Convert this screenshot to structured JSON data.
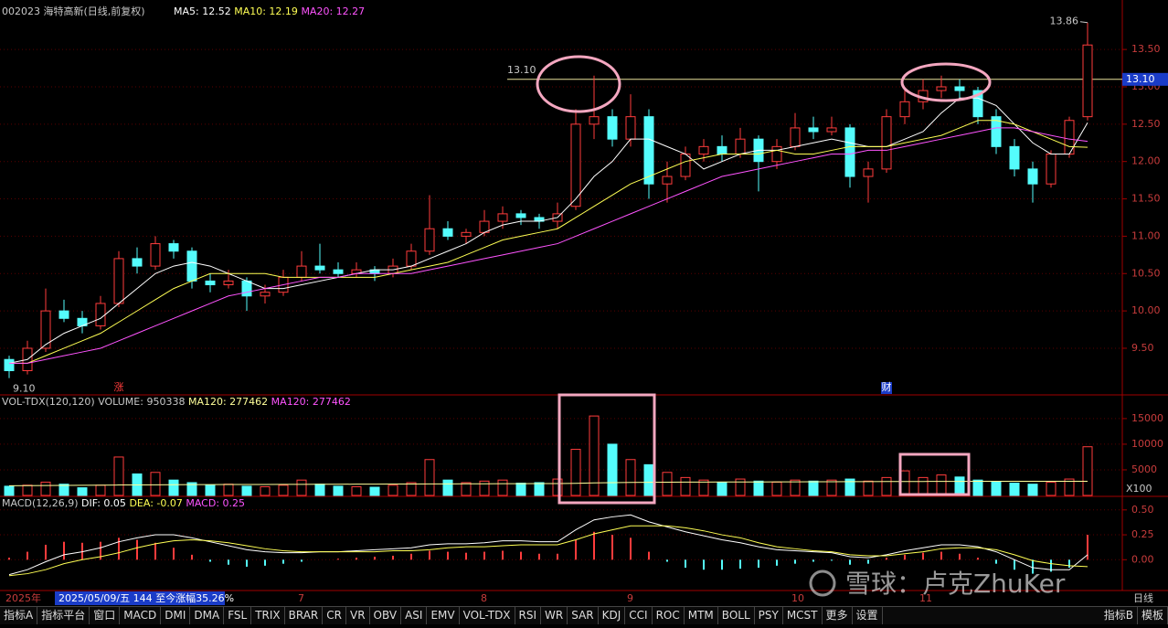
{
  "header": {
    "symbol": "002023 海特高新(日线,前复权)"
  },
  "chart_data": [
    {
      "type": "candlestick",
      "categories": [
        "2025年",
        null,
        null,
        null,
        null,
        null,
        null,
        null,
        null,
        null,
        null,
        null,
        null,
        null,
        null,
        null,
        "7",
        null,
        null,
        null,
        null,
        null,
        null,
        null,
        null,
        null,
        "8",
        null,
        null,
        null,
        null,
        null,
        null,
        null,
        "9",
        null,
        null,
        null,
        null,
        null,
        null,
        null,
        null,
        "10",
        null,
        null,
        null,
        null,
        null,
        null,
        "11",
        null,
        null,
        null,
        null,
        null,
        null,
        null,
        null,
        null
      ],
      "open": [
        9.35,
        9.2,
        9.5,
        10.0,
        9.9,
        9.8,
        10.1,
        10.7,
        10.6,
        10.9,
        10.8,
        10.4,
        10.35,
        10.4,
        10.2,
        10.25,
        10.45,
        10.6,
        10.55,
        10.5,
        10.55,
        10.5,
        10.6,
        10.8,
        11.1,
        11.0,
        11.05,
        11.2,
        11.3,
        11.25,
        11.2,
        11.4,
        12.5,
        12.6,
        12.3,
        12.6,
        11.7,
        11.8,
        12.1,
        12.2,
        12.1,
        12.3,
        12.0,
        12.2,
        12.45,
        12.4,
        12.45,
        11.8,
        11.9,
        12.6,
        12.8,
        12.95,
        13.0,
        12.95,
        12.6,
        12.2,
        11.9,
        11.7,
        12.1,
        12.6
      ],
      "high": [
        9.4,
        9.6,
        10.3,
        10.15,
        10.0,
        10.2,
        10.8,
        10.85,
        11.0,
        10.95,
        10.85,
        10.5,
        10.55,
        10.45,
        10.35,
        10.55,
        10.8,
        10.9,
        10.65,
        10.65,
        10.6,
        10.7,
        10.9,
        11.55,
        11.2,
        11.1,
        11.35,
        11.4,
        11.35,
        11.3,
        11.45,
        12.7,
        13.15,
        12.7,
        12.9,
        12.7,
        12.0,
        12.2,
        12.3,
        12.35,
        12.45,
        12.35,
        12.3,
        12.65,
        12.6,
        12.6,
        12.5,
        12.0,
        12.7,
        13.0,
        13.1,
        13.15,
        13.1,
        13.0,
        12.7,
        12.3,
        12.0,
        12.15,
        12.6,
        13.86
      ],
      "low": [
        9.1,
        9.15,
        9.45,
        9.85,
        9.7,
        9.75,
        10.05,
        10.5,
        10.55,
        10.7,
        10.3,
        10.25,
        10.3,
        10.0,
        10.1,
        10.2,
        10.4,
        10.5,
        10.45,
        10.45,
        10.4,
        10.45,
        10.55,
        10.75,
        10.95,
        10.9,
        11.0,
        11.1,
        11.15,
        11.1,
        11.1,
        11.35,
        12.3,
        12.2,
        12.2,
        11.5,
        11.45,
        11.75,
        12.0,
        12.0,
        12.05,
        11.6,
        11.9,
        12.15,
        12.3,
        12.35,
        11.65,
        11.45,
        11.85,
        12.5,
        12.7,
        12.85,
        12.85,
        12.5,
        12.1,
        11.8,
        11.45,
        11.65,
        12.05,
        12.55
      ],
      "close": [
        9.2,
        9.5,
        10.0,
        9.9,
        9.8,
        10.1,
        10.7,
        10.6,
        10.9,
        10.8,
        10.4,
        10.35,
        10.4,
        10.2,
        10.25,
        10.45,
        10.6,
        10.55,
        10.5,
        10.55,
        10.5,
        10.6,
        10.8,
        11.1,
        11.0,
        11.05,
        11.2,
        11.3,
        11.25,
        11.2,
        11.3,
        12.5,
        12.6,
        12.3,
        12.6,
        11.7,
        11.8,
        12.1,
        12.2,
        12.1,
        12.3,
        12.0,
        12.2,
        12.45,
        12.4,
        12.45,
        11.8,
        11.9,
        12.6,
        12.8,
        12.95,
        13.0,
        12.95,
        12.6,
        12.2,
        11.9,
        11.7,
        12.1,
        12.55,
        13.56
      ],
      "up_color": "#ff3c3c",
      "down_color": "#54fcfc",
      "series": [
        {
          "name": "MA5: 12.52",
          "color": "#ffffff",
          "values": [
            9.3,
            9.35,
            9.55,
            9.7,
            9.8,
            9.9,
            10.1,
            10.3,
            10.5,
            10.6,
            10.65,
            10.6,
            10.5,
            10.4,
            10.3,
            10.3,
            10.35,
            10.4,
            10.45,
            10.5,
            10.55,
            10.55,
            10.6,
            10.7,
            10.8,
            10.9,
            11.05,
            11.15,
            11.2,
            11.2,
            11.25,
            11.5,
            11.8,
            12.0,
            12.3,
            12.3,
            12.2,
            12.1,
            11.9,
            12.0,
            12.1,
            12.15,
            12.15,
            12.2,
            12.25,
            12.3,
            12.25,
            12.2,
            12.2,
            12.3,
            12.4,
            12.65,
            12.85,
            12.85,
            12.75,
            12.5,
            12.25,
            12.1,
            12.1,
            12.52
          ]
        },
        {
          "name": "MA10: 12.19",
          "color": "#ffff54",
          "values": [
            9.3,
            9.3,
            9.4,
            9.5,
            9.6,
            9.7,
            9.85,
            10.0,
            10.15,
            10.3,
            10.4,
            10.5,
            10.5,
            10.5,
            10.5,
            10.45,
            10.45,
            10.45,
            10.45,
            10.45,
            10.45,
            10.5,
            10.55,
            10.6,
            10.65,
            10.75,
            10.85,
            10.95,
            11.0,
            11.05,
            11.1,
            11.25,
            11.4,
            11.55,
            11.7,
            11.8,
            11.9,
            12.0,
            12.05,
            12.1,
            12.1,
            12.1,
            12.15,
            12.1,
            12.1,
            12.15,
            12.2,
            12.2,
            12.2,
            12.25,
            12.3,
            12.35,
            12.45,
            12.55,
            12.55,
            12.5,
            12.4,
            12.3,
            12.2,
            12.19
          ]
        },
        {
          "name": "MA20: 12.27",
          "color": "#ff54ff",
          "values": [
            9.3,
            9.3,
            9.35,
            9.4,
            9.45,
            9.5,
            9.6,
            9.7,
            9.8,
            9.9,
            10.0,
            10.1,
            10.2,
            10.25,
            10.3,
            10.35,
            10.4,
            10.45,
            10.45,
            10.5,
            10.5,
            10.5,
            10.5,
            10.55,
            10.6,
            10.65,
            10.7,
            10.75,
            10.8,
            10.85,
            10.9,
            11.0,
            11.1,
            11.2,
            11.3,
            11.4,
            11.5,
            11.6,
            11.7,
            11.8,
            11.85,
            11.9,
            11.95,
            12.0,
            12.05,
            12.1,
            12.1,
            12.15,
            12.15,
            12.2,
            12.25,
            12.3,
            12.35,
            12.4,
            12.45,
            12.45,
            12.4,
            12.35,
            12.3,
            12.27
          ]
        }
      ],
      "ylim": [
        8.9,
        14.04
      ],
      "yticks": [
        {
          "value": 9.5,
          "label": "9.50"
        },
        {
          "value": 10,
          "label": "10.00"
        },
        {
          "value": 10.5,
          "label": "10.50"
        },
        {
          "value": 11,
          "label": "11.00"
        },
        {
          "value": 11.5,
          "label": "11.50"
        },
        {
          "value": 12,
          "label": "12.00"
        },
        {
          "value": 12.5,
          "label": "12.50"
        },
        {
          "value": 13,
          "label": "13.00"
        },
        {
          "value": 13.5,
          "label": "13.50"
        }
      ],
      "grid": true,
      "hline": {
        "value": 13.1,
        "label": "13.10"
      },
      "high_mark": 13.86,
      "low_mark": {
        "value": 9.1,
        "label": "9.10"
      },
      "events": [
        {
          "category_index": 6,
          "label": "涨"
        },
        {
          "category_index": 48,
          "label": "财"
        }
      ]
    },
    {
      "type": "bar",
      "title": "VOL-TDX(120,120)",
      "series": [
        {
          "name": "VOLUME: 950338",
          "values": [
            1800,
            2000,
            2600,
            2200,
            1500,
            2000,
            7500,
            4200,
            4500,
            3000,
            2500,
            2000,
            2200,
            1800,
            1700,
            2000,
            3000,
            2200,
            1800,
            1700,
            1600,
            2000,
            2500,
            7000,
            3000,
            2500,
            2800,
            3000,
            2400,
            2500,
            3200,
            9000,
            15500,
            10000,
            7000,
            6000,
            4500,
            3500,
            3000,
            2500,
            3200,
            2800,
            2600,
            3000,
            2800,
            3000,
            3200,
            2800,
            3500,
            4800,
            3500,
            4000,
            3600,
            3000,
            2600,
            2400,
            2200,
            2600,
            3200,
            9503
          ]
        },
        {
          "name": "MA120: 277462",
          "color": "#ffff9a",
          "values": [
            1900,
            1920,
            1940,
            1960,
            1980,
            2000,
            2040,
            2060,
            2080,
            2100,
            2110,
            2120,
            2130,
            2140,
            2150,
            2160,
            2170,
            2180,
            2190,
            2200,
            2210,
            2220,
            2230,
            2250,
            2260,
            2270,
            2280,
            2290,
            2300,
            2310,
            2320,
            2370,
            2450,
            2500,
            2540,
            2570,
            2590,
            2600,
            2610,
            2620,
            2630,
            2640,
            2650,
            2660,
            2670,
            2680,
            2690,
            2700,
            2710,
            2720,
            2730,
            2740,
            2750,
            2755,
            2760,
            2765,
            2768,
            2770,
            2772,
            2775
          ]
        }
      ],
      "legend_extra": "MA120: 277462",
      "unit": "X100",
      "ylim": [
        0,
        17300
      ],
      "yticks": [
        5000,
        10000,
        15000
      ],
      "grid": true
    },
    {
      "type": "macd",
      "title": "MACD(12,26,9)",
      "series": [
        {
          "name": "DIF: 0.05",
          "color": "#ffffff",
          "values": [
            -0.15,
            -0.1,
            -0.02,
            0.05,
            0.08,
            0.12,
            0.18,
            0.22,
            0.25,
            0.25,
            0.22,
            0.18,
            0.14,
            0.1,
            0.08,
            0.07,
            0.07,
            0.08,
            0.08,
            0.09,
            0.1,
            0.11,
            0.12,
            0.15,
            0.16,
            0.16,
            0.17,
            0.19,
            0.19,
            0.18,
            0.18,
            0.3,
            0.4,
            0.43,
            0.45,
            0.38,
            0.33,
            0.28,
            0.24,
            0.2,
            0.17,
            0.13,
            0.1,
            0.09,
            0.08,
            0.07,
            0.03,
            0.02,
            0.05,
            0.09,
            0.12,
            0.15,
            0.15,
            0.13,
            0.08,
            0,
            -0.08,
            -0.1,
            -0.1,
            0.05
          ]
        },
        {
          "name": "DEA: -0.07",
          "color": "#ffff54",
          "values": [
            -0.16,
            -0.14,
            -0.1,
            -0.04,
            0,
            0.03,
            0.07,
            0.12,
            0.16,
            0.19,
            0.2,
            0.19,
            0.17,
            0.14,
            0.11,
            0.09,
            0.08,
            0.08,
            0.08,
            0.08,
            0.08,
            0.09,
            0.09,
            0.1,
            0.12,
            0.13,
            0.13,
            0.14,
            0.15,
            0.15,
            0.15,
            0.2,
            0.26,
            0.3,
            0.34,
            0.34,
            0.34,
            0.32,
            0.29,
            0.25,
            0.22,
            0.17,
            0.13,
            0.11,
            0.09,
            0.08,
            0.05,
            0.04,
            0.04,
            0.06,
            0.08,
            0.11,
            0.12,
            0.12,
            0.1,
            0.05,
            -0.01,
            -0.04,
            -0.06,
            -0.07
          ]
        },
        {
          "name": "MACD: 0.25",
          "color": "#ff54ff",
          "values": [
            0.02,
            0.08,
            0.15,
            0.18,
            0.17,
            0.18,
            0.22,
            0.2,
            0.17,
            0.12,
            0.05,
            -0.02,
            -0.05,
            -0.07,
            -0.06,
            -0.04,
            -0.02,
            0,
            0.01,
            0.02,
            0.03,
            0.04,
            0.06,
            0.09,
            0.08,
            0.07,
            0.08,
            0.09,
            0.08,
            0.06,
            0.06,
            0.2,
            0.28,
            0.25,
            0.22,
            0.08,
            -0.02,
            -0.08,
            -0.1,
            -0.1,
            -0.09,
            -0.08,
            -0.06,
            -0.04,
            -0.02,
            -0.01,
            -0.05,
            -0.04,
            0.02,
            0.05,
            0.07,
            0.08,
            0.06,
            0.02,
            -0.04,
            -0.1,
            -0.14,
            -0.12,
            -0.08,
            0.25
          ]
        }
      ],
      "ylim": [
        -0.3,
        0.59
      ],
      "yticks": [
        {
          "value": 0,
          "label": "0.00"
        },
        {
          "value": 0.25,
          "label": "0.25"
        },
        {
          "value": 0.5,
          "label": "0.50"
        }
      ],
      "grid": true
    }
  ],
  "info_bar": "2025/05/09/五 144 至今涨幅35.26%",
  "period": "日线",
  "watermark": "雪球：卢克ZhuKer",
  "toolbar": [
    "指标A",
    "指标平台",
    "窗口",
    "MACD",
    "DMI",
    "DMA",
    "FSL",
    "TRIX",
    "BRAR",
    "CR",
    "VR",
    "OBV",
    "ASI",
    "EMV",
    "VOL-TDX",
    "RSI",
    "WR",
    "SAR",
    "KDJ",
    "CCI",
    "ROC",
    "MTM",
    "BOLL",
    "PSY",
    "MCST",
    "更多",
    "设置"
  ],
  "toolbar_right": [
    "指标B",
    "模板"
  ]
}
